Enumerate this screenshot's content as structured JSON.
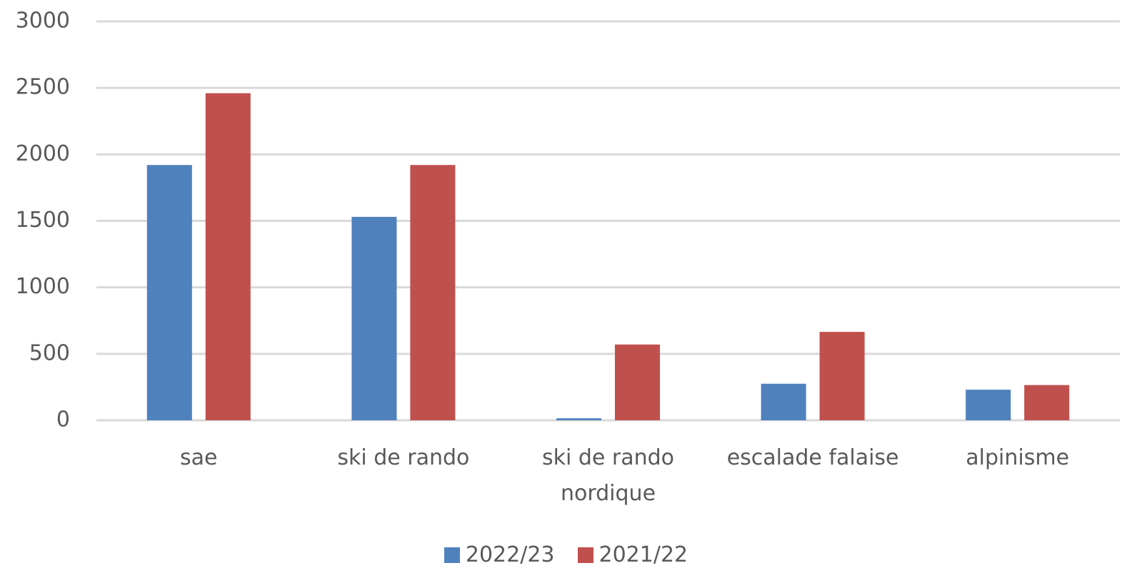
{
  "chart_data": {
    "type": "bar",
    "categories": [
      "sae",
      "ski de rando",
      "ski de rando nordique",
      "escalade falaise",
      "alpinisme"
    ],
    "series": [
      {
        "name": "2022/23",
        "color": "#4f81bd",
        "values": [
          1920,
          1530,
          15,
          275,
          230
        ]
      },
      {
        "name": "2021/22",
        "color": "#c0504d",
        "values": [
          2460,
          1920,
          570,
          665,
          265
        ]
      }
    ],
    "ylim": [
      0,
      3000
    ],
    "yticks": [
      0,
      500,
      1000,
      1500,
      2000,
      2500,
      3000
    ],
    "grid": true,
    "legend": "bottom"
  }
}
